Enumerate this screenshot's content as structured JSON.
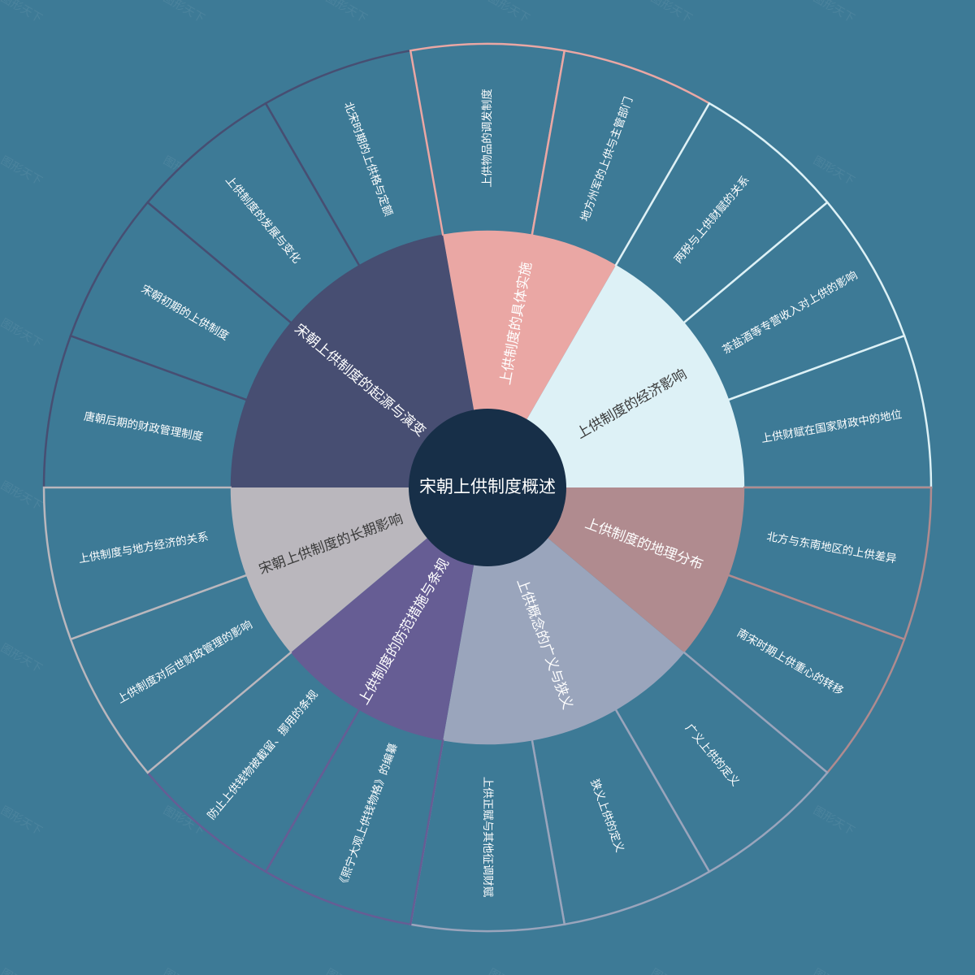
{
  "center": {
    "label": "宋朝上供制度概述"
  },
  "watermark": "图形天下",
  "colors": {
    "background": "#3d7a96",
    "center": "#172f48"
  },
  "categories": [
    {
      "label": "宋朝上供制度的起源与演变",
      "color": "#474e72",
      "text_color": "#ffffff",
      "leaves": [
        "唐朝后期的财政管理制度",
        "宋朝初期的上供制度",
        "上供制度的发展与变化",
        "北宋时期的上供格与定额"
      ]
    },
    {
      "label": "上供制度的具体实施",
      "color": "#eaa7a4",
      "text_color": "#ffffff",
      "leaves": [
        "上供物品的调发制度",
        "地方州军的上供与主管部门"
      ]
    },
    {
      "label": "上供制度的经济影响",
      "color": "#ddf1f6",
      "text_color": "#3a3a3a",
      "leaves": [
        "两税与上供财赋的关系",
        "茶盐酒等专营收入对上供的影响",
        "上供财赋在国家财政中的地位"
      ]
    },
    {
      "label": "上供制度的地理分布",
      "color": "#b08b8f",
      "text_color": "#ffffff",
      "leaves": [
        "北方与东南地区的上供差异",
        "南宋时期上供重心的转移"
      ]
    },
    {
      "label": "上供概念的广义与狭义",
      "color": "#9aa5bc",
      "text_color": "#ffffff",
      "leaves": [
        "广义上供的定义",
        "狭义上供的定义",
        "上供正赋与其他征调财赋"
      ]
    },
    {
      "label": "上供制度的防范措施与条规",
      "color": "#665d94",
      "text_color": "#ffffff",
      "leaves": [
        "《熙宁大观上供钱物格》的编纂",
        "防止上供钱物被截留、挪用的条规"
      ]
    },
    {
      "label": "宋朝上供制度的长期影响",
      "color": "#bab7bd",
      "text_color": "#3a3a3a",
      "leaves": [
        "上供制度对后世财政管理的影响",
        "上供制度与地方经济的关系"
      ]
    }
  ]
}
